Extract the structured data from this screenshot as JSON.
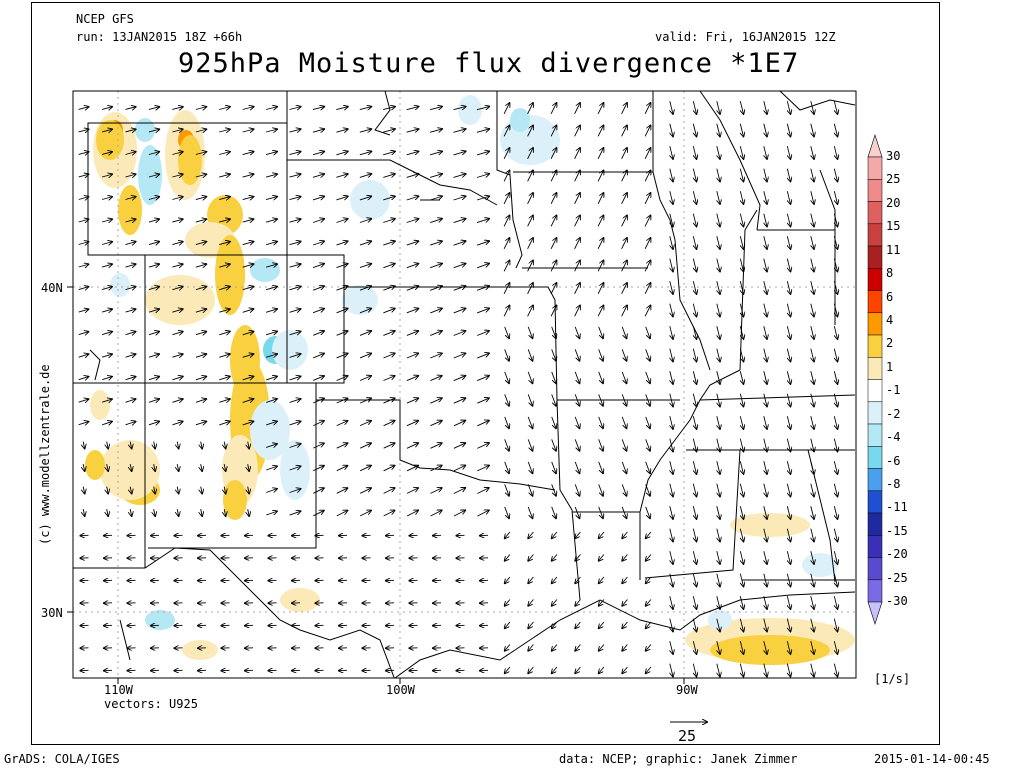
{
  "header": {
    "model": "NCEP GFS",
    "run": "run: 13JAN2015 18Z +66h",
    "valid": "valid: Fri, 16JAN2015 12Z",
    "title": "925hPa Moisture flux divergence *1E7"
  },
  "axes": {
    "lat_labels": [
      "40N",
      "30N"
    ],
    "lon_labels": [
      "110W",
      "100W",
      "90W"
    ]
  },
  "vectors_label": "vectors: U925",
  "ref_vector_value": "25",
  "units": "[1/s]",
  "watermark": "(c) www.modellzentrale.de",
  "footer": {
    "grads": "GrADS: COLA/IGES",
    "credit": "data: NCEP; graphic: Janek Zimmer",
    "timestamp": "2015-01-14-00:45"
  },
  "colorbar": {
    "labels": [
      "30",
      "25",
      "20",
      "15",
      "11",
      "8",
      "6",
      "4",
      "2",
      "1",
      "-1",
      "-2",
      "-4",
      "-6",
      "-8",
      "-11",
      "-15",
      "-20",
      "-25",
      "-30"
    ],
    "colors": [
      "#f4a8a8",
      "#f08a8a",
      "#e06060",
      "#c84040",
      "#a82020",
      "#cc0000",
      "#ff4400",
      "#ff9900",
      "#f8d040",
      "#fbeab8",
      "#ffffff",
      "#dcf0fa",
      "#b4e8f4",
      "#78d8ee",
      "#4aa0ee",
      "#2050d0",
      "#202aa0",
      "#3a30b8",
      "#5a4ad0",
      "#7a6ae6",
      "#a898f8"
    ],
    "top_cap_color": "#f8d0d0",
    "bottom_cap_color": "#c8c0fa"
  },
  "flow": {
    "description_note": "",
    "colors": {
      "positive_weak": "#fbeab8",
      "positive": "#f8d040",
      "positive_strong": "#ff9900",
      "negative_weak": "#dcf0fa",
      "negative": "#b4e8f4",
      "negative_strong": "#78d8ee"
    }
  }
}
